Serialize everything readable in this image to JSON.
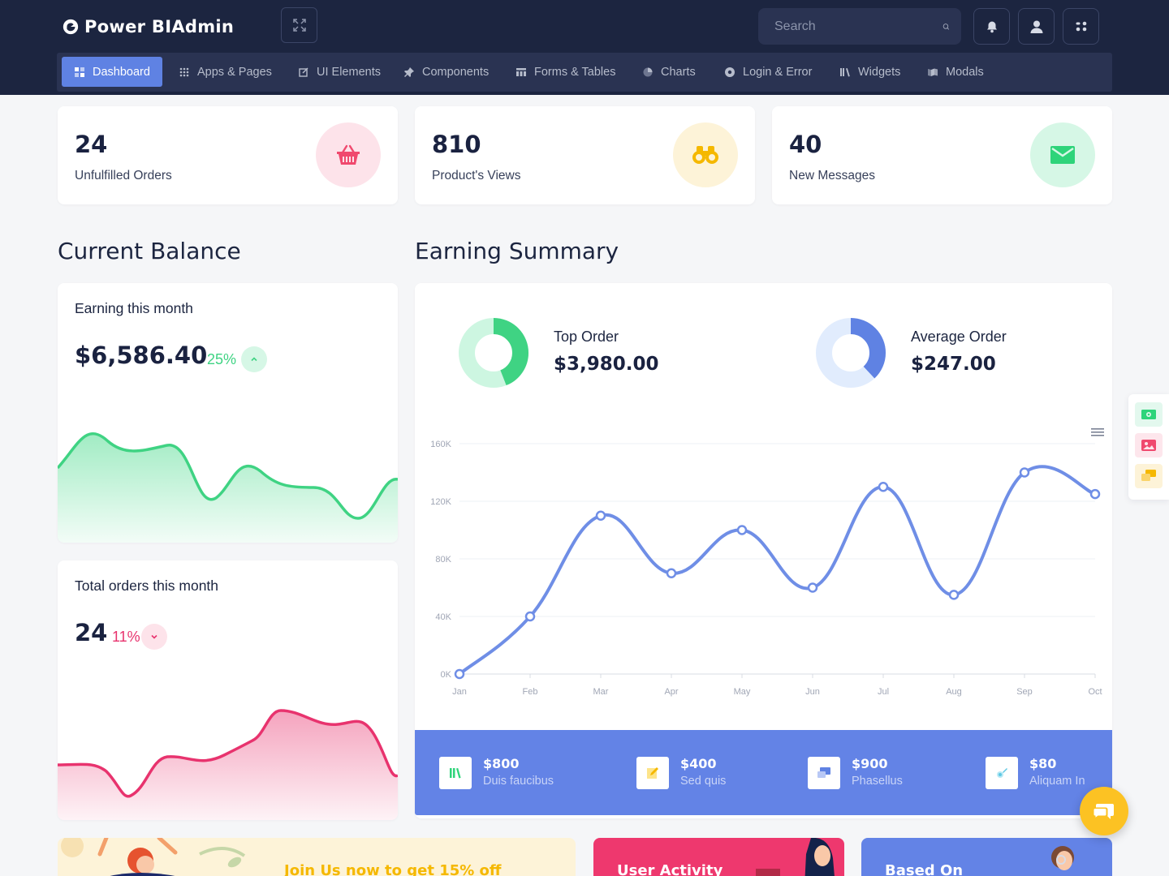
{
  "brand": {
    "name": "Power BIAdmin"
  },
  "header": {
    "search_placeholder": "Search",
    "icons": [
      "expand-icon",
      "search-icon",
      "bell-icon",
      "user-icon",
      "apps-icon"
    ]
  },
  "nav": {
    "items": [
      {
        "label": "Dashboard",
        "icon": "dashboard-icon",
        "active": true
      },
      {
        "label": "Apps & Pages",
        "icon": "grid-icon"
      },
      {
        "label": "UI Elements",
        "icon": "edit-icon"
      },
      {
        "label": "Components",
        "icon": "pin-icon"
      },
      {
        "label": "Forms & Tables",
        "icon": "table-icon"
      },
      {
        "label": "Charts",
        "icon": "pie-icon"
      },
      {
        "label": "Login & Error",
        "icon": "record-icon"
      },
      {
        "label": "Widgets",
        "icon": "library-icon"
      },
      {
        "label": "Modals",
        "icon": "map-icon"
      }
    ]
  },
  "stats": [
    {
      "value": "24",
      "label": "Unfulfilled Orders",
      "icon": "basket-icon",
      "color": "#f0496e",
      "bg": "#fde3ea"
    },
    {
      "value": "810",
      "label": "Product's Views",
      "icon": "binoculars-icon",
      "color": "#f5b800",
      "bg": "#fdf3d8"
    },
    {
      "value": "40",
      "label": "New Messages",
      "icon": "mail-icon",
      "color": "#2ed47a",
      "bg": "#d6f7e6"
    }
  ],
  "balance": {
    "title": "Current Balance",
    "earning": {
      "title": "Earning this month",
      "value": "$6,586.40",
      "pct": "25%",
      "trend": "up",
      "color": "#3fd383"
    },
    "orders": {
      "title": "Total orders this month",
      "value": "24",
      "pct": "11%",
      "trend": "down",
      "color": "#e8336e"
    }
  },
  "summary": {
    "title": "Earning Summary",
    "top_order": {
      "label": "Top Order",
      "value": "$3,980.00",
      "fraction": 0.44
    },
    "avg_order": {
      "label": "Average Order",
      "value": "$247.00",
      "fraction": 0.38
    },
    "menu_icon": "hamburger-icon"
  },
  "chart_data": {
    "type": "line",
    "categories": [
      "Jan",
      "Feb",
      "Mar",
      "Apr",
      "May",
      "Jun",
      "Jul",
      "Aug",
      "Sep",
      "Oct"
    ],
    "values": [
      0,
      40000,
      110000,
      70000,
      100000,
      60000,
      130000,
      55000,
      140000,
      125000
    ],
    "ylim": [
      0,
      160000
    ],
    "yticks": [
      "0K",
      "40K",
      "80K",
      "120K",
      "160K"
    ],
    "grid": true,
    "color": "#6f8ee6"
  },
  "strip": [
    {
      "value": "$800",
      "label": "Duis faucibus",
      "icon": "books-icon",
      "color": "#2ed47a"
    },
    {
      "value": "$400",
      "label": "Sed quis",
      "icon": "note-icon",
      "color": "#f5b800"
    },
    {
      "value": "$900",
      "label": "Phasellus",
      "icon": "chat-icon",
      "color": "#5f82e3"
    },
    {
      "value": "$80",
      "label": "Aliquam In",
      "icon": "brush-icon",
      "color": "#5fc8e3"
    }
  ],
  "promos": {
    "join": "Join Us now to get 15% off",
    "activity": "User Activity",
    "based": "Based On"
  },
  "sidepanel": [
    "money-icon",
    "image-icon",
    "chat-bubbles-icon"
  ],
  "fab": {
    "icon": "chat-icon"
  }
}
